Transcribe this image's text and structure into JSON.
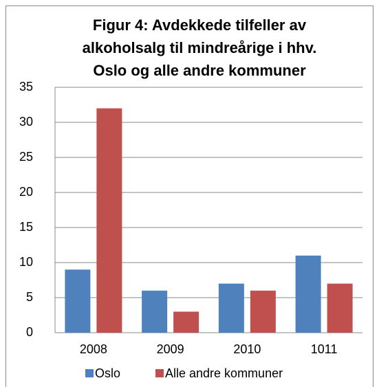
{
  "chart_data": {
    "type": "bar",
    "title": [
      "Figur 4: Avdekkede tilfeller av",
      "alkoholsalg til mindreårige i hhv.",
      "Oslo og alle andre kommuner"
    ],
    "categories": [
      "2008",
      "2009",
      "2010",
      "1011"
    ],
    "series": [
      {
        "name": "Oslo",
        "color": "#4f81bd",
        "values": [
          9,
          6,
          7,
          11
        ]
      },
      {
        "name": "Alle andre kommuner",
        "color": "#c0504d",
        "values": [
          32,
          3,
          6,
          7
        ]
      }
    ],
    "ylim": [
      0,
      35
    ],
    "yticks": [
      0,
      5,
      10,
      15,
      20,
      25,
      30,
      35
    ],
    "grid": true,
    "legend": "bottom"
  }
}
